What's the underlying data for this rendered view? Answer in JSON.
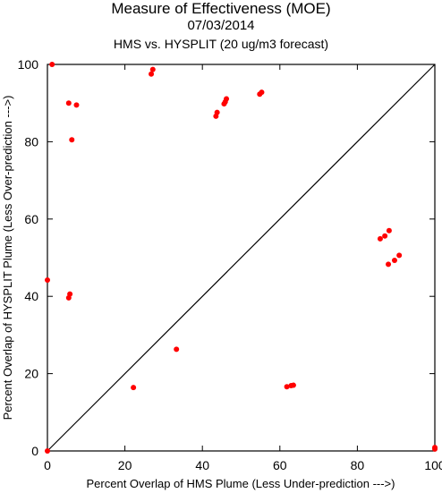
{
  "chart_data": {
    "type": "scatter",
    "title": "Measure of Effectiveness (MOE)",
    "subtitle": "07/03/2014",
    "subtitle2": "HMS vs. HYSPLIT  (20 ug/m3 forecast)",
    "xlabel": "Percent Overlap of HMS Plume (Less Under-prediction --->)",
    "ylabel": "Percent Overlap of HYSPLIT Plume (Less Over-prediction --->)",
    "xlim": [
      0,
      100
    ],
    "ylim": [
      0,
      100
    ],
    "xticks": [
      "0",
      "20",
      "40",
      "60",
      "80",
      "100"
    ],
    "yticks": [
      "0",
      "20",
      "40",
      "60",
      "80",
      "100"
    ],
    "reference_line": "y = x",
    "grid": false,
    "point_color": "#ff0000",
    "points": [
      {
        "x": 0,
        "y": 0
      },
      {
        "x": 0,
        "y": 44.2
      },
      {
        "x": 1.2,
        "y": 100
      },
      {
        "x": 5.5,
        "y": 90
      },
      {
        "x": 7.5,
        "y": 89.5
      },
      {
        "x": 6.3,
        "y": 80.5
      },
      {
        "x": 5.8,
        "y": 40.6
      },
      {
        "x": 5.5,
        "y": 39.6
      },
      {
        "x": 26.8,
        "y": 97.5
      },
      {
        "x": 27.2,
        "y": 98.7
      },
      {
        "x": 22.2,
        "y": 16.4
      },
      {
        "x": 33.3,
        "y": 26.3
      },
      {
        "x": 43.5,
        "y": 86.6
      },
      {
        "x": 43.8,
        "y": 87.6
      },
      {
        "x": 45.6,
        "y": 89.8
      },
      {
        "x": 45.9,
        "y": 90.3
      },
      {
        "x": 46.2,
        "y": 91.1
      },
      {
        "x": 54.8,
        "y": 92.3
      },
      {
        "x": 55.3,
        "y": 92.8
      },
      {
        "x": 61.8,
        "y": 16.6
      },
      {
        "x": 62.9,
        "y": 16.9
      },
      {
        "x": 63.5,
        "y": 17
      },
      {
        "x": 85.9,
        "y": 54.9
      },
      {
        "x": 87.1,
        "y": 55.6
      },
      {
        "x": 88.2,
        "y": 57
      },
      {
        "x": 88,
        "y": 48.3
      },
      {
        "x": 89.6,
        "y": 49.3
      },
      {
        "x": 90.8,
        "y": 50.6
      },
      {
        "x": 100,
        "y": 0.5
      },
      {
        "x": 100,
        "y": 0.9
      }
    ]
  }
}
